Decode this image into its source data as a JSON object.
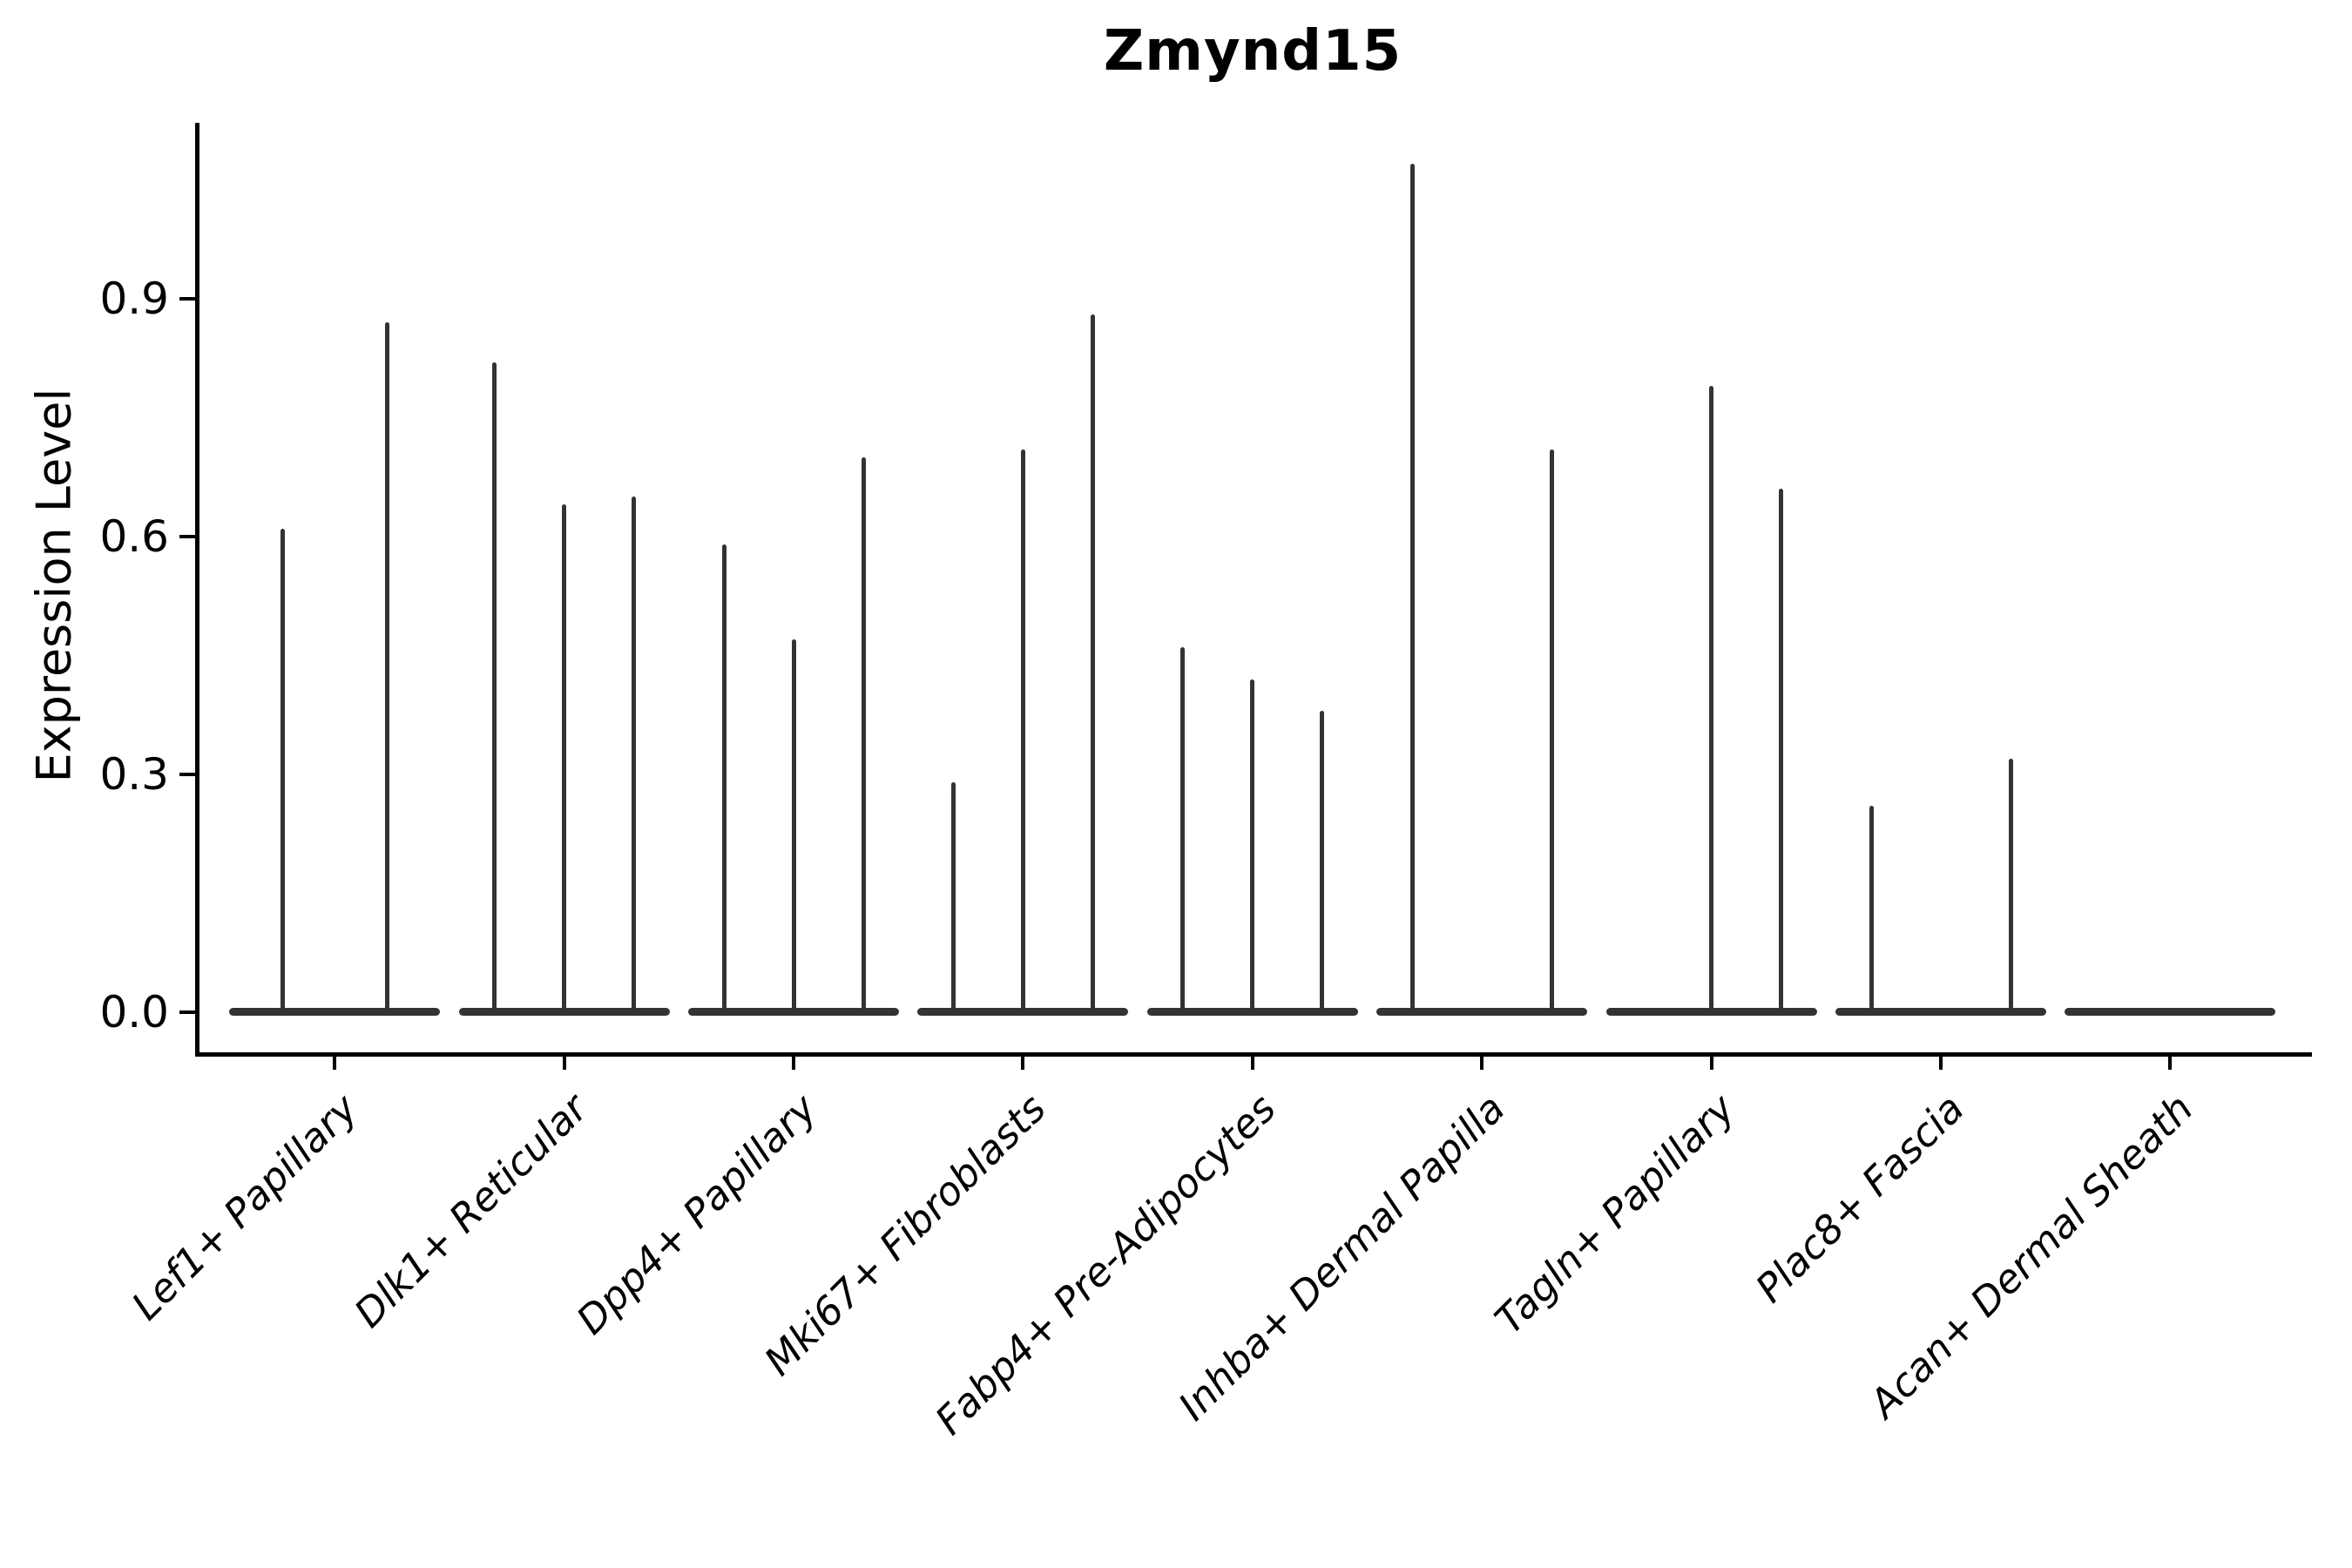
{
  "figure": {
    "title": "Zmynd15",
    "y_axis_label": "Expression Level",
    "colors": {
      "violin": "#333333",
      "axis": "#000000",
      "text": "#000000",
      "background": "#ffffff"
    }
  },
  "chart_data": {
    "type": "violin",
    "title": "Zmynd15",
    "xlabel": "",
    "ylabel": "Expression Level",
    "ytick_labels": [
      "0.0",
      "0.3",
      "0.6",
      "0.9"
    ],
    "ytick_values": [
      0.0,
      0.3,
      0.6,
      0.9
    ],
    "ylim": [
      -0.054,
      1.125
    ],
    "data_range": [
      0.0,
      1.07
    ],
    "grid": false,
    "legend_position": "none",
    "categories": [
      "Lef1+ Papillary",
      "Dlk1+ Reticular",
      "Dpp4+ Papillary",
      "Mki67+ Fibroblasts",
      "Fabp4+ Pre-Adipocytes",
      "Inhba+ Dermal Papilla",
      "Tagln+ Papillary",
      "Plac8+ Fascia",
      "Acan+ Dermal Sheath"
    ],
    "groups": [
      {
        "category": "Lef1+ Papillary",
        "violins": 2,
        "baseline_value": 0,
        "spikes": [
          {
            "violin": 0,
            "peak": 0.61
          },
          {
            "violin": 1,
            "peak": 0.87
          }
        ]
      },
      {
        "category": "Dlk1+ Reticular",
        "violins": 3,
        "baseline_value": 0,
        "spikes": [
          {
            "violin": 0,
            "peak": 0.82
          },
          {
            "violin": 1,
            "peak": 0.64
          },
          {
            "violin": 2,
            "peak": 0.65
          }
        ]
      },
      {
        "category": "Dpp4+ Papillary",
        "violins": 3,
        "baseline_value": 0,
        "spikes": [
          {
            "violin": 0,
            "peak": 0.59
          },
          {
            "violin": 1,
            "peak": 0.47
          },
          {
            "violin": 2,
            "peak": 0.7
          }
        ]
      },
      {
        "category": "Mki67+ Fibroblasts",
        "violins": 3,
        "baseline_value": 0,
        "spikes": [
          {
            "violin": 0,
            "peak": 0.29
          },
          {
            "violin": 1,
            "peak": 0.71
          },
          {
            "violin": 2,
            "peak": 0.88
          }
        ]
      },
      {
        "category": "Fabp4+ Pre-Adipocytes",
        "violins": 3,
        "baseline_value": 0,
        "spikes": [
          {
            "violin": 0,
            "peak": 0.46
          },
          {
            "violin": 1,
            "peak": 0.42
          },
          {
            "violin": 2,
            "peak": 0.38
          }
        ]
      },
      {
        "category": "Inhba+ Dermal Papilla",
        "violins": 3,
        "baseline_value": 0,
        "spikes": [
          {
            "violin": 0,
            "peak": 1.07
          },
          {
            "violin": 2,
            "peak": 0.71
          }
        ]
      },
      {
        "category": "Tagln+ Papillary",
        "violins": 3,
        "baseline_value": 0,
        "spikes": [
          {
            "violin": 1,
            "peak": 0.79
          },
          {
            "violin": 2,
            "peak": 0.66
          }
        ]
      },
      {
        "category": "Plac8+ Fascia",
        "violins": 3,
        "baseline_value": 0,
        "spikes": [
          {
            "violin": 0,
            "peak": 0.26
          },
          {
            "violin": 2,
            "peak": 0.32
          }
        ]
      },
      {
        "category": "Acan+ Dermal Sheath",
        "violins": 1,
        "baseline_value": 0,
        "spikes": []
      }
    ]
  }
}
